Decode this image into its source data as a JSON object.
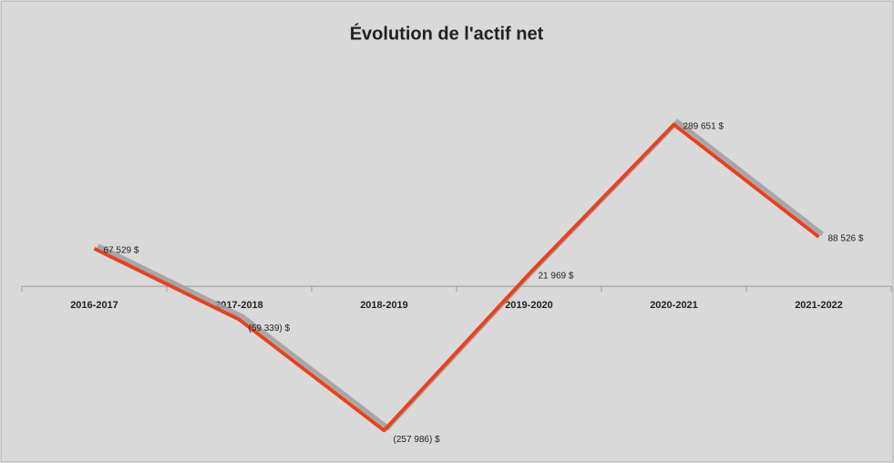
{
  "chart_data": {
    "type": "line",
    "title": "Évolution de l'actif net",
    "categories": [
      "2016-2017",
      "2017-2018",
      "2018-2019",
      "2019-2020",
      "2020-2021",
      "2021-2022"
    ],
    "series": [
      {
        "color": "#e8421c",
        "values": [
          67529,
          -59339,
          -257986,
          21969,
          289651,
          88526
        ],
        "value_labels": [
          "67 529 $",
          "(59 339) $",
          "(257 986) $",
          "21 969 $",
          "289 651 $",
          "88 526 $"
        ]
      }
    ],
    "ylim": [
      -300000,
      400000
    ]
  }
}
